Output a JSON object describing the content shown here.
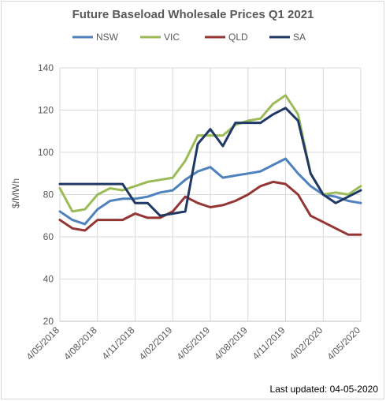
{
  "footer": "Last updated: 04-05-2020",
  "chart_data": {
    "type": "line",
    "title": "Future Baseload Wholesale Prices Q1 2021",
    "ylabel": "$/MWh",
    "xlabel": "",
    "ylim": [
      20,
      140
    ],
    "yticks": [
      20,
      40,
      60,
      80,
      100,
      120,
      140
    ],
    "grid": true,
    "legend": "top",
    "x_tick_labels": [
      "4/05/2018",
      "4/08/2018",
      "4/11/2018",
      "4/02/2019",
      "4/05/2019",
      "4/08/2019",
      "4/11/2019",
      "4/02/2020",
      "4/05/2020"
    ],
    "x": [
      "2018-05",
      "2018-06",
      "2018-07",
      "2018-08",
      "2018-09",
      "2018-10",
      "2018-11",
      "2018-12",
      "2019-01",
      "2019-02",
      "2019-03",
      "2019-04",
      "2019-05",
      "2019-06",
      "2019-07",
      "2019-08",
      "2019-09",
      "2019-10",
      "2019-11",
      "2019-12",
      "2020-01",
      "2020-02",
      "2020-03",
      "2020-04",
      "2020-05"
    ],
    "series": [
      {
        "name": "NSW",
        "color": "#4f81bd",
        "values": [
          72,
          68,
          66,
          73,
          77,
          78,
          78,
          79,
          81,
          82,
          87,
          91,
          93,
          88,
          89,
          90,
          91,
          94,
          97,
          90,
          84,
          80,
          79,
          77,
          76
        ]
      },
      {
        "name": "VIC",
        "color": "#9bbb59",
        "values": [
          83,
          72,
          73,
          80,
          83,
          82,
          84,
          86,
          87,
          88,
          96,
          108,
          108,
          108,
          113,
          115,
          116,
          123,
          127,
          118,
          90,
          80,
          81,
          80,
          84
        ]
      },
      {
        "name": "QLD",
        "color": "#943634",
        "values": [
          68,
          64,
          63,
          68,
          68,
          68,
          71,
          69,
          69,
          72,
          79,
          76,
          74,
          75,
          77,
          80,
          84,
          86,
          85,
          80,
          70,
          67,
          64,
          61,
          61
        ]
      },
      {
        "name": "SA",
        "color": "#1f3864",
        "values": [
          85,
          85,
          85,
          85,
          85,
          85,
          76,
          76,
          70,
          71,
          72,
          104,
          111,
          103,
          114,
          114,
          114,
          118,
          121,
          115,
          90,
          80,
          76,
          79,
          82
        ]
      }
    ]
  }
}
